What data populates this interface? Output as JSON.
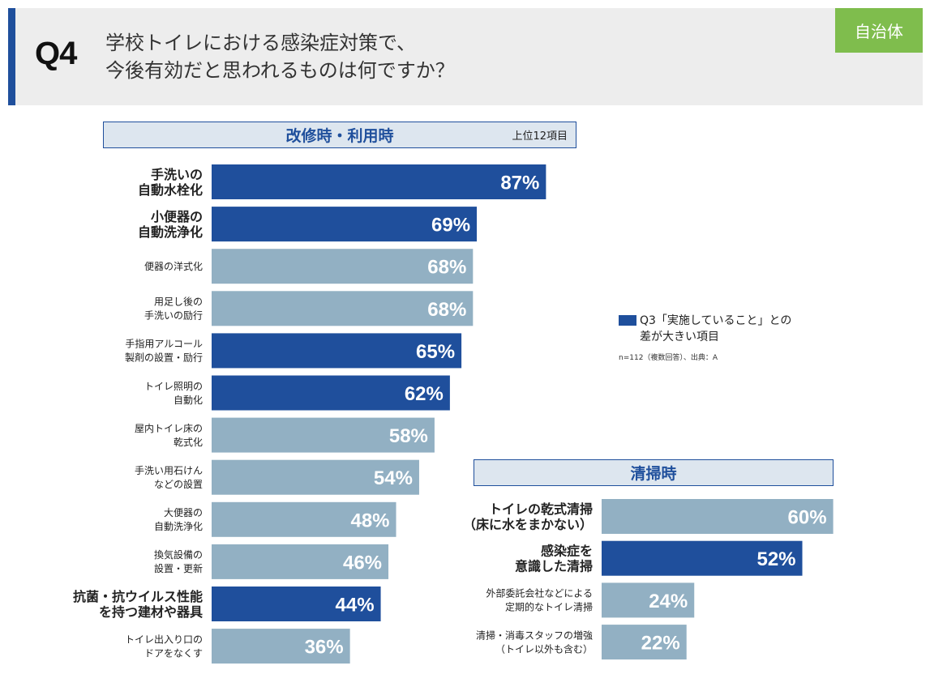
{
  "header": {
    "q_number": "Q4",
    "question_line1": "学校トイレにおける感染症対策で、",
    "question_line2": "今後有効だと思われるものは何ですか？",
    "badge": "自治体"
  },
  "colors": {
    "highlight": "#1f4f9c",
    "normal": "#92b0c3",
    "accent": "#7fbd4d"
  },
  "legend": {
    "line1": "Q3「実施していること」との",
    "line2": "差が大きい項目",
    "source": "n=112（複数回答）、出典：A"
  },
  "chart_data": [
    {
      "type": "bar",
      "orientation": "horizontal",
      "title": "改修時・利用時",
      "note": "上位12項目",
      "unit": "%",
      "xlim": [
        0,
        100
      ],
      "categories": [
        [
          "手洗いの",
          "自動水栓化"
        ],
        [
          "小便器の",
          "自動洗浄化"
        ],
        [
          "便器の洋式化"
        ],
        [
          "用足し後の",
          "手洗いの励行"
        ],
        [
          "手指用アルコール",
          "製剤の設置・励行"
        ],
        [
          "トイレ照明の",
          "自動化"
        ],
        [
          "屋内トイレ床の",
          "乾式化"
        ],
        [
          "手洗い用石けん",
          "などの設置"
        ],
        [
          "大便器の",
          "自動洗浄化"
        ],
        [
          "換気設備の",
          "設置・更新"
        ],
        [
          "抗菌・抗ウイルス性能",
          "を持つ建材や器具"
        ],
        [
          "トイレ出入り口の",
          "ドアをなくす"
        ]
      ],
      "values": [
        87,
        69,
        68,
        68,
        65,
        62,
        58,
        54,
        48,
        46,
        44,
        36
      ],
      "value_labels": [
        "87%",
        "69%",
        "68%",
        "68%",
        "65%",
        "62%",
        "58%",
        "54%",
        "48%",
        "46%",
        "44%",
        "36%"
      ],
      "highlighted": [
        true,
        true,
        false,
        false,
        true,
        true,
        false,
        false,
        false,
        false,
        true,
        false
      ],
      "label_emphasis": [
        true,
        true,
        false,
        false,
        false,
        false,
        false,
        false,
        false,
        false,
        true,
        false
      ]
    },
    {
      "type": "bar",
      "orientation": "horizontal",
      "title": "清掃時",
      "unit": "%",
      "xlim": [
        0,
        100
      ],
      "categories": [
        [
          "トイレの乾式清掃",
          "（床に水をまかない）"
        ],
        [
          "感染症を",
          "意識した清掃"
        ],
        [
          "外部委託会社などによる",
          "定期的なトイレ清掃"
        ],
        [
          "清掃・消毒スタッフの増強",
          "（トイレ以外も含む）"
        ]
      ],
      "values": [
        60,
        52,
        24,
        22
      ],
      "value_labels": [
        "60%",
        "52%",
        "24%",
        "22%"
      ],
      "highlighted": [
        false,
        true,
        false,
        false
      ],
      "label_emphasis": [
        true,
        true,
        false,
        false
      ]
    }
  ]
}
